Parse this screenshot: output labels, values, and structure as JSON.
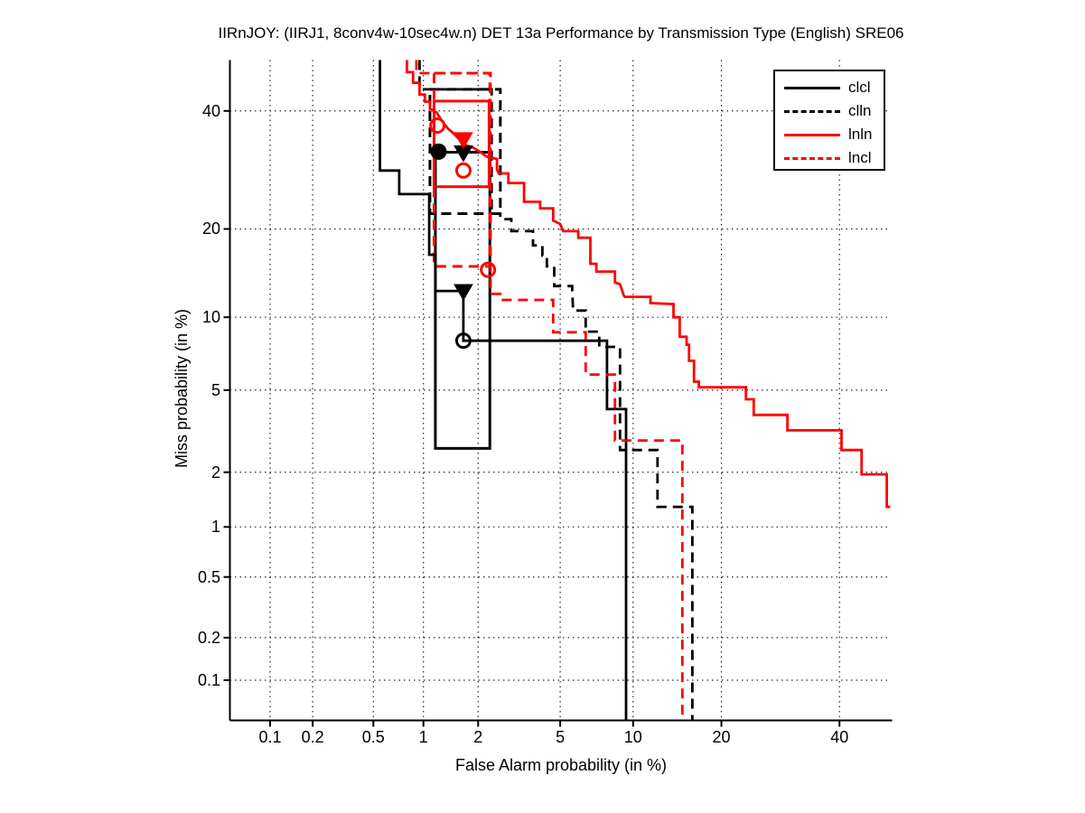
{
  "title": "IIRnJOY: (IIRJ1, 8conv4w-10sec4w.n) DET 13a Performance by Transmission Type (English) SRE06",
  "axes": {
    "x": {
      "label": "False Alarm probability (in %)",
      "tick_labels": [
        "0.1",
        "0.2",
        "0.5",
        "1",
        "2",
        "5",
        "10",
        "20",
        "40"
      ],
      "tick_values": [
        0.1,
        0.2,
        0.5,
        1,
        2,
        5,
        10,
        20,
        40
      ],
      "min_percent": 0.05,
      "max_percent": 50
    },
    "y": {
      "label": "Miss probability (in %)",
      "tick_labels": [
        "0.1",
        "0.2",
        "0.5",
        "1",
        "2",
        "5",
        "10",
        "20",
        "40"
      ],
      "tick_values": [
        0.1,
        0.2,
        0.5,
        1,
        2,
        5,
        10,
        20,
        40
      ],
      "min_percent": 0.05,
      "max_percent": 50
    }
  },
  "colors": {
    "black": "#000000",
    "red": "#ff0000",
    "grid": "#000000",
    "background": "#ffffff"
  },
  "legend": {
    "position": "top-right",
    "items": [
      {
        "label": "clcl",
        "color": "#000000",
        "dash": "solid"
      },
      {
        "label": "clln",
        "color": "#000000",
        "dash": "dashed"
      },
      {
        "label": "lnln",
        "color": "#ff0000",
        "dash": "solid"
      },
      {
        "label": "lncl",
        "color": "#ff0000",
        "dash": "dashed"
      }
    ]
  },
  "chart_data": {
    "type": "line",
    "subtype": "DET curve (step functions on normal-deviate/probit scale)",
    "title": "IIRnJOY: (IIRJ1, 8conv4w-10sec4w.n) DET 13a Performance by Transmission Type (English) SRE06",
    "xlabel": "False Alarm probability (in %)",
    "ylabel": "Miss probability (in %)",
    "xlim": [
      0.05,
      50
    ],
    "ylim": [
      0.05,
      50
    ],
    "xticks": [
      0.1,
      0.2,
      0.5,
      1,
      2,
      5,
      10,
      20,
      40
    ],
    "yticks": [
      0.1,
      0.2,
      0.5,
      1,
      2,
      5,
      10,
      20,
      40
    ],
    "grid": "dotted",
    "legend_position": "top-right",
    "series": [
      {
        "name": "clcl",
        "color": "#000000",
        "dash": "solid",
        "points": [
          [
            0.55,
            50
          ],
          [
            0.55,
            29.1
          ],
          [
            0.72,
            29.1
          ],
          [
            0.72,
            25.2
          ],
          [
            1.08,
            25.2
          ],
          [
            1.08,
            16.6
          ],
          [
            1.17,
            16.6
          ],
          [
            1.17,
            12.5
          ],
          [
            1.67,
            12.5
          ],
          [
            1.67,
            8.1
          ],
          [
            7.9,
            8.1
          ],
          [
            7.9,
            4.1
          ],
          [
            9.4,
            4.1
          ],
          [
            9.4,
            0.05
          ]
        ]
      },
      {
        "name": "clln",
        "color": "#000000",
        "dash": "dashed",
        "points": [
          [
            0.95,
            50
          ],
          [
            0.95,
            44.2
          ],
          [
            2.35,
            44.2
          ],
          [
            2.35,
            22.2
          ],
          [
            2.6,
            22.2
          ],
          [
            2.6,
            21.4
          ],
          [
            2.95,
            21.4
          ],
          [
            2.95,
            19.7
          ],
          [
            3.75,
            19.7
          ],
          [
            3.75,
            17.8
          ],
          [
            4.15,
            17.8
          ],
          [
            4.15,
            16.5
          ],
          [
            4.35,
            16.5
          ],
          [
            4.35,
            15.2
          ],
          [
            4.7,
            15.2
          ],
          [
            4.7,
            13
          ],
          [
            5.65,
            13
          ],
          [
            5.65,
            12.5
          ],
          [
            5.7,
            10.6
          ],
          [
            6.45,
            10.6
          ],
          [
            6.45,
            8.8
          ],
          [
            7.35,
            8.8
          ],
          [
            7.35,
            7.65
          ],
          [
            8.9,
            7.65
          ],
          [
            8.9,
            2.6
          ],
          [
            12.3,
            2.6
          ],
          [
            12.3,
            1.3
          ],
          [
            16.2,
            1.3
          ],
          [
            16.2,
            0.05
          ]
        ]
      },
      {
        "name": "lnln",
        "color": "#ff0000",
        "dash": "solid",
        "points": [
          [
            0.8,
            50
          ],
          [
            0.8,
            47.6
          ],
          [
            0.87,
            47.6
          ],
          [
            0.87,
            45.5
          ],
          [
            0.95,
            45.5
          ],
          [
            0.95,
            43.2
          ],
          [
            1.02,
            43.2
          ],
          [
            1.02,
            41.8
          ],
          [
            1.09,
            41.8
          ],
          [
            1.09,
            40.4
          ],
          [
            1.19,
            39.7
          ],
          [
            1.26,
            38.3
          ],
          [
            1.37,
            36.7
          ],
          [
            1.48,
            35.7
          ],
          [
            1.58,
            34.7
          ],
          [
            1.71,
            33.6
          ],
          [
            1.89,
            33.1
          ],
          [
            2.06,
            32.3
          ],
          [
            2.22,
            31.5
          ],
          [
            2.5,
            31.1
          ],
          [
            2.5,
            29.3
          ],
          [
            2.55,
            28.6
          ],
          [
            2.85,
            28.6
          ],
          [
            2.85,
            27
          ],
          [
            3.4,
            27
          ],
          [
            3.4,
            24
          ],
          [
            4.05,
            24
          ],
          [
            4.05,
            23
          ],
          [
            4.65,
            23
          ],
          [
            4.65,
            21.2
          ],
          [
            5.0,
            20.7
          ],
          [
            5.15,
            19.7
          ],
          [
            6.0,
            19.7
          ],
          [
            6.0,
            18.8
          ],
          [
            6.75,
            18.8
          ],
          [
            6.75,
            15.5
          ],
          [
            7.15,
            15.5
          ],
          [
            7.15,
            14.6
          ],
          [
            8.5,
            14.6
          ],
          [
            8.5,
            13.4
          ],
          [
            8.9,
            13.2
          ],
          [
            9.2,
            12.05
          ],
          [
            9.3,
            11.9
          ],
          [
            11.6,
            11.9
          ],
          [
            11.6,
            11.3
          ],
          [
            14,
            11.2
          ],
          [
            14,
            10
          ],
          [
            14.7,
            10
          ],
          [
            14.7,
            8.4
          ],
          [
            15.5,
            8.4
          ],
          [
            15.5,
            7.8
          ],
          [
            15.8,
            7.8
          ],
          [
            15.8,
            6.7
          ],
          [
            16.4,
            6.7
          ],
          [
            16.4,
            5.45
          ],
          [
            17,
            5.45
          ],
          [
            17,
            5.15
          ],
          [
            23.6,
            5.15
          ],
          [
            23.6,
            4.55
          ],
          [
            24.8,
            4.55
          ],
          [
            24.8,
            3.85
          ],
          [
            30.4,
            3.85
          ],
          [
            30.4,
            3.25
          ],
          [
            40.4,
            3.25
          ],
          [
            40.4,
            2.6
          ],
          [
            44.3,
            2.6
          ],
          [
            44.3,
            1.95
          ],
          [
            49.3,
            1.95
          ],
          [
            49.3,
            1.3
          ],
          [
            50,
            1.3
          ]
        ]
      },
      {
        "name": "lncl",
        "color": "#ff0000",
        "dash": "dashed",
        "points": [
          [
            0.91,
            50
          ],
          [
            0.91,
            47.4
          ],
          [
            2.32,
            47.4
          ],
          [
            2.32,
            12.2
          ],
          [
            2.6,
            12.2
          ],
          [
            2.6,
            11.6
          ],
          [
            4.65,
            11.6
          ],
          [
            4.65,
            8.75
          ],
          [
            6.45,
            8.75
          ],
          [
            6.45,
            5.85
          ],
          [
            8.5,
            5.85
          ],
          [
            8.5,
            2.9
          ],
          [
            15,
            2.9
          ],
          [
            15,
            0.05
          ]
        ]
      }
    ],
    "dcf_boxes": [
      {
        "series": "clcl",
        "color": "#000000",
        "dash": "solid",
        "fa_range": [
          1.17,
          2.3
        ],
        "miss_range": [
          2.65,
          32.3
        ]
      },
      {
        "series": "clln",
        "color": "#000000",
        "dash": "dashed",
        "fa_range": [
          1.09,
          2.6
        ],
        "miss_range": [
          22.2,
          44.2
        ]
      },
      {
        "series": "lnln",
        "color": "#ff0000",
        "dash": "solid",
        "fa_range": [
          1.15,
          2.28
        ],
        "miss_range": [
          26.4,
          41.9
        ]
      },
      {
        "series": "lncl",
        "color": "#ff0000",
        "dash": "dashed",
        "fa_range": [
          1.15,
          2.3
        ],
        "miss_range": [
          15.2,
          47.4
        ]
      }
    ],
    "markers": [
      {
        "series": "clcl",
        "shape": "circle",
        "filled": true,
        "color": "#000000",
        "fa": 1.22,
        "miss": 32.4
      },
      {
        "series": "clcl",
        "shape": "triangle",
        "filled": true,
        "color": "#000000",
        "fa": 1.67,
        "miss": 32.3
      },
      {
        "series": "clcl",
        "shape": "triangle",
        "filled": true,
        "color": "#000000",
        "fa": 1.67,
        "miss": 12.5
      },
      {
        "series": "clcl",
        "shape": "circle",
        "filled": false,
        "color": "#000000",
        "fa": 1.67,
        "miss": 8.1
      },
      {
        "series": "lnln",
        "shape": "circle",
        "filled": false,
        "color": "#ff0000",
        "fa": 1.2,
        "miss": 37.2
      },
      {
        "series": "lnln",
        "shape": "triangle",
        "filled": true,
        "color": "#ff0000",
        "fa": 1.67,
        "miss": 34.7
      },
      {
        "series": "lnln",
        "shape": "circle",
        "filled": false,
        "color": "#ff0000",
        "fa": 1.67,
        "miss": 29.1
      },
      {
        "series": "lncl",
        "shape": "circle",
        "filled": false,
        "color": "#ff0000",
        "fa": 2.25,
        "miss": 14.8
      }
    ]
  }
}
